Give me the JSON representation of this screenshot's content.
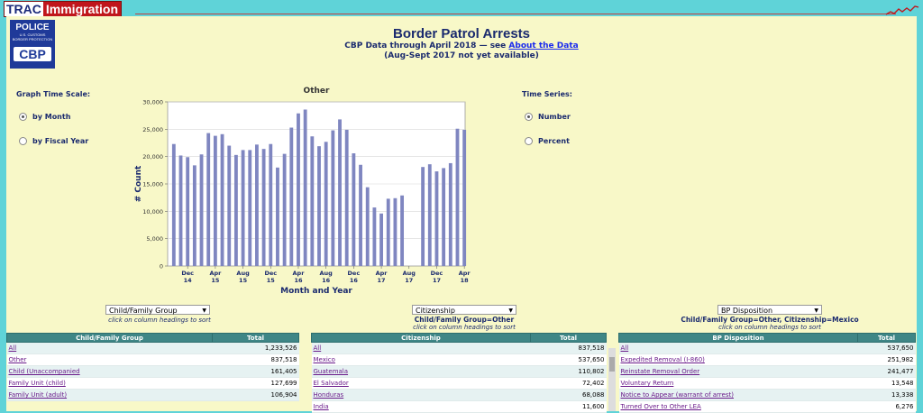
{
  "brand": {
    "part1": "TRAC",
    "part2": "Immigration",
    "accent": "#c0161c"
  },
  "badge": {
    "line1": "POLICE",
    "line2": "U.S. CUSTOMS",
    "line3": "BORDER PROTECTION",
    "abbr": "CBP"
  },
  "header": {
    "title": "Border Patrol Arrests",
    "subtitle_prefix": "CBP Data through April 2018 — see",
    "about_link": "About the Data",
    "note": "(Aug-Sept 2017 not yet available)"
  },
  "controls": {
    "time_scale_label": "Graph Time Scale:",
    "by_month": "by Month",
    "by_fiscal_year": "by Fiscal Year",
    "time_series_label": "Time Series:",
    "number": "Number",
    "percent": "Percent"
  },
  "chart_data": {
    "type": "bar",
    "title": "Other",
    "xlabel": "Month and Year",
    "ylabel": "# Count",
    "ylim": [
      0,
      30000
    ],
    "yticks": [
      0,
      5000,
      10000,
      15000,
      20000,
      25000,
      30000
    ],
    "ytick_labels": [
      "0",
      "5,000",
      "10,000",
      "15,000",
      "20,000",
      "25,000",
      "30,000"
    ],
    "xtick_labels": [
      {
        "line1": "Dec",
        "line2": "14",
        "index": 2
      },
      {
        "line1": "Apr",
        "line2": "15",
        "index": 6
      },
      {
        "line1": "Aug",
        "line2": "15",
        "index": 10
      },
      {
        "line1": "Dec",
        "line2": "15",
        "index": 14
      },
      {
        "line1": "Apr",
        "line2": "16",
        "index": 18
      },
      {
        "line1": "Aug",
        "line2": "16",
        "index": 22
      },
      {
        "line1": "Dec",
        "line2": "16",
        "index": 26
      },
      {
        "line1": "Apr",
        "line2": "17",
        "index": 30
      },
      {
        "line1": "Aug",
        "line2": "17",
        "index": 34
      },
      {
        "line1": "Dec",
        "line2": "17",
        "index": 38
      },
      {
        "line1": "Apr",
        "line2": "18",
        "index": 42
      }
    ],
    "values": [
      22300,
      20200,
      19900,
      18400,
      20400,
      24300,
      23800,
      24100,
      22000,
      20300,
      21200,
      21200,
      22200,
      21400,
      22300,
      18000,
      20500,
      25300,
      27900,
      28600,
      23700,
      21900,
      22700,
      24800,
      26800,
      24900,
      20600,
      18500,
      14400,
      10700,
      9600,
      12300,
      12400,
      12900,
      null,
      null,
      18100,
      18600,
      17300,
      17900,
      18800,
      25100,
      24900
    ],
    "bar_color": "#7f86c0"
  },
  "panels": [
    {
      "select": "Child/Family Group",
      "filter": "",
      "hint": "click on column headings to sort",
      "col1": "Child/Family Group",
      "col2": "Total",
      "rows": [
        {
          "name": "All",
          "total": "1,233,526"
        },
        {
          "name": "Other",
          "total": "837,518"
        },
        {
          "name": "Child (Unaccompanied",
          "total": "161,405"
        },
        {
          "name": "Family Unit (child)",
          "total": "127,699"
        },
        {
          "name": "Family Unit (adult)",
          "total": "106,904"
        }
      ]
    },
    {
      "select": "Citizenship",
      "filter": "Child/Family Group=Other",
      "hint": "click on column headings to sort",
      "col1": "Citizenship",
      "col2": "Total",
      "rows": [
        {
          "name": "All",
          "total": "837,518"
        },
        {
          "name": "Mexico",
          "total": "537,650"
        },
        {
          "name": "Guatemala",
          "total": "110,802"
        },
        {
          "name": "El Salvador",
          "total": "72,402"
        },
        {
          "name": "Honduras",
          "total": "68,088"
        },
        {
          "name": "India",
          "total": "11,600"
        }
      ]
    },
    {
      "select": "BP Disposition",
      "filter": "Child/Family Group=Other, Citizenship=Mexico",
      "hint": "click on column headings to sort",
      "col1": "BP Disposition",
      "col2": "Total",
      "rows": [
        {
          "name": "All",
          "total": "537,650"
        },
        {
          "name": "Expedited Removal (I-860)",
          "total": "251,982"
        },
        {
          "name": "Reinstate Removal Order",
          "total": "241,477"
        },
        {
          "name": "Voluntary Return",
          "total": "13,548"
        },
        {
          "name": "Notice to Appear (warrant of arrest)",
          "total": "13,338"
        },
        {
          "name": "Turned Over to Other LEA",
          "total": "6,276"
        }
      ]
    }
  ]
}
